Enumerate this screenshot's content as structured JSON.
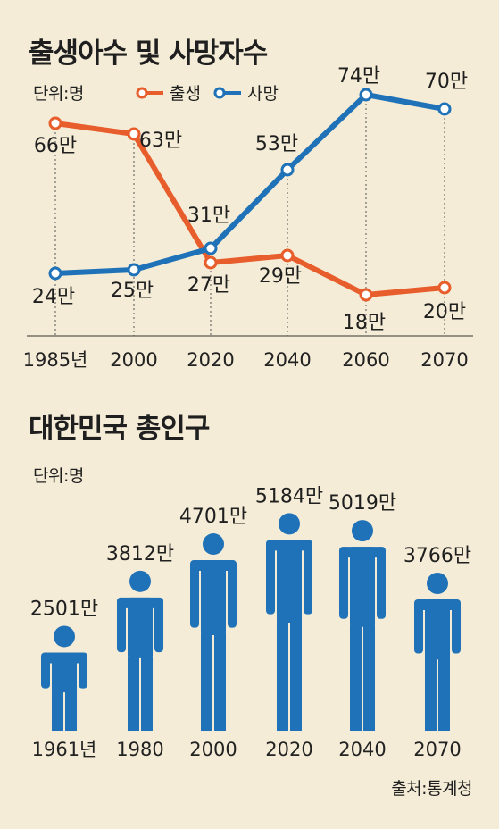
{
  "source": "출처:통계청",
  "colors": {
    "background": "#f4ecd6",
    "births": "#e85d2c",
    "deaths": "#1f72b8",
    "population": "#1f72b8"
  },
  "chart_data": [
    {
      "type": "line",
      "title": "출생아수 및 사망자수",
      "unit_label": "단위:명",
      "categories": [
        "1985년",
        "2000",
        "2020",
        "2040",
        "2060",
        "2070"
      ],
      "series": [
        {
          "name": "출생",
          "color": "#e85d2c",
          "values": [
            66,
            63,
            27,
            29,
            18,
            20
          ],
          "labels": [
            "66만",
            "63만",
            "27만",
            "29만",
            "18만",
            "20만"
          ]
        },
        {
          "name": "사망",
          "color": "#1f72b8",
          "values": [
            24,
            25,
            31,
            53,
            74,
            70
          ],
          "labels": [
            "24만",
            "25만",
            "31만",
            "53만",
            "74만",
            "70만"
          ]
        }
      ],
      "legend": "top-left",
      "grid": false
    },
    {
      "type": "bar",
      "title": "대한민국 총인구",
      "unit_label": "단위:명",
      "categories": [
        "1961년",
        "1980",
        "2000",
        "2020",
        "2040",
        "2070"
      ],
      "values": [
        2501,
        3812,
        4701,
        5184,
        5019,
        3766
      ],
      "labels": [
        "2501만",
        "3812만",
        "4701만",
        "5184만",
        "5019만",
        "3766만"
      ],
      "marker": "person-icon",
      "grid": false
    }
  ]
}
